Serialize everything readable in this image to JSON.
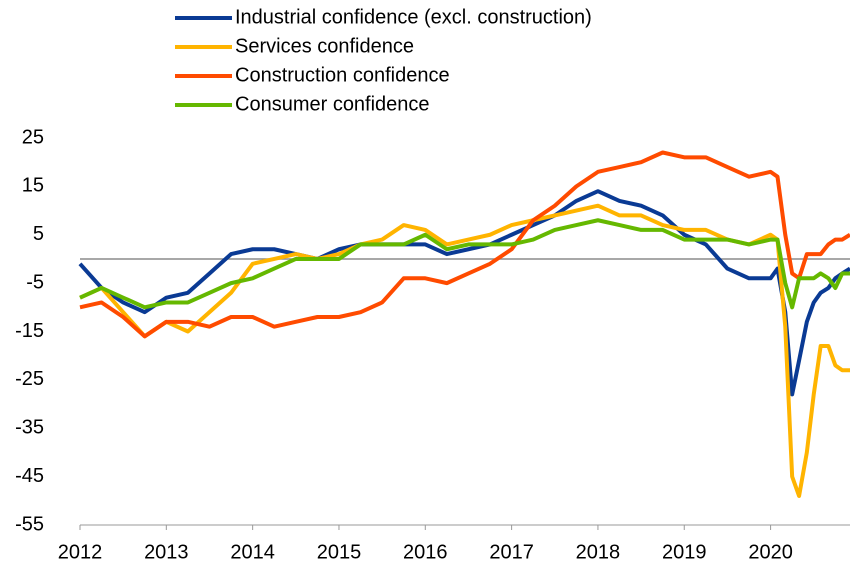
{
  "chart_data": {
    "type": "line",
    "x": [
      2012,
      2012.25,
      2012.5,
      2012.75,
      2013,
      2013.25,
      2013.5,
      2013.75,
      2014,
      2014.25,
      2014.5,
      2014.75,
      2015,
      2015.25,
      2015.5,
      2015.75,
      2016,
      2016.25,
      2016.5,
      2016.75,
      2017,
      2017.25,
      2017.5,
      2017.75,
      2018,
      2018.25,
      2018.5,
      2018.75,
      2019,
      2019.25,
      2019.5,
      2019.75,
      2020,
      2020.08,
      2020.17,
      2020.25,
      2020.33,
      2020.42,
      2020.5,
      2020.58,
      2020.67,
      2020.75,
      2020.83,
      2020.92
    ],
    "series": [
      {
        "name": "Industrial confidence (excl. construction)",
        "color": "#0a3a94",
        "values": [
          -1,
          -6,
          -9,
          -11,
          -8,
          -7,
          -3,
          1,
          2,
          2,
          1,
          0,
          2,
          3,
          3,
          3,
          3,
          1,
          2,
          3,
          5,
          7,
          9,
          12,
          14,
          12,
          11,
          9,
          5,
          3,
          -2,
          -4,
          -4,
          -2,
          -11,
          -28,
          -21,
          -13,
          -9,
          -7,
          -6,
          -4,
          -3,
          -2
        ]
      },
      {
        "name": "Services confidence",
        "color": "#ffb400",
        "values": [
          -8,
          -6,
          -11,
          -16,
          -13,
          -15,
          -11,
          -7,
          -1,
          0,
          1,
          0,
          1,
          3,
          4,
          7,
          6,
          3,
          4,
          5,
          7,
          8,
          9,
          10,
          11,
          9,
          9,
          7,
          6,
          6,
          4,
          3,
          5,
          4,
          -14,
          -45,
          -49,
          -40,
          -28,
          -18,
          -18,
          -22,
          -23,
          -23
        ]
      },
      {
        "name": "Construction confidence",
        "color": "#ff4b00",
        "values": [
          -10,
          -9,
          -12,
          -16,
          -13,
          -13,
          -14,
          -12,
          -12,
          -14,
          -13,
          -12,
          -12,
          -11,
          -9,
          -4,
          -4,
          -5,
          -3,
          -1,
          2,
          8,
          11,
          15,
          18,
          19,
          20,
          22,
          21,
          21,
          19,
          17,
          18,
          17,
          5,
          -3,
          -4,
          1,
          1,
          1,
          3,
          4,
          4,
          5
        ]
      },
      {
        "name": "Consumer confidence",
        "color": "#65b800",
        "values": [
          -8,
          -6,
          -8,
          -10,
          -9,
          -9,
          -7,
          -5,
          -4,
          -2,
          0,
          0,
          0,
          3,
          3,
          3,
          5,
          2,
          3,
          3,
          3,
          4,
          6,
          7,
          8,
          7,
          6,
          6,
          4,
          4,
          4,
          3,
          4,
          4,
          -5,
          -10,
          -4,
          -4,
          -4,
          -3,
          -4,
          -6,
          -3,
          -3
        ]
      }
    ],
    "xlim": [
      2012,
      2020.92
    ],
    "xticks": [
      2012,
      2013,
      2014,
      2015,
      2016,
      2017,
      2018,
      2019,
      2020
    ],
    "ylim": [
      -55,
      25
    ],
    "yticks": [
      25,
      15,
      5,
      -5,
      -15,
      -25,
      -35,
      -45,
      -55
    ],
    "grid": false
  }
}
